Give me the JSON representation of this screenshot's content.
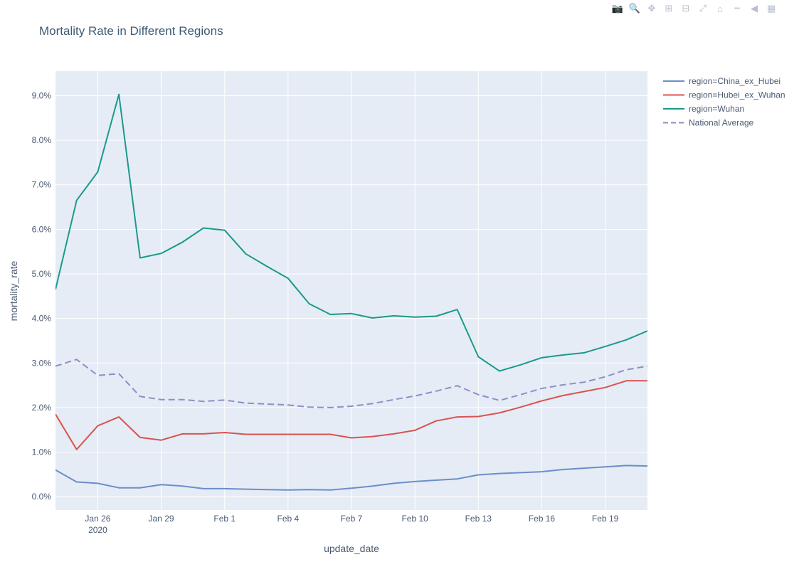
{
  "toolbar": {
    "icons": [
      "camera-icon",
      "zoom-icon",
      "pan-icon",
      "zoom-in-icon",
      "zoom-out-icon",
      "autoscale-icon",
      "home-icon",
      "spike-lines-icon",
      "hover-closest-icon",
      "hover-compare-icon"
    ]
  },
  "colors": {
    "plot_bg": "#e5ecf6",
    "grid": "#ffffff",
    "China_ex_Hubei": "#6b8ec9",
    "Hubei_ex_Wuhan": "#d9534f",
    "Wuhan": "#1a9a8a",
    "National Average": "#8f8fc4"
  },
  "chart_data": {
    "type": "line",
    "title": "Mortality Rate in Different Regions",
    "xlabel": "update_date",
    "ylabel": "mortality_rate",
    "x": [
      "2020-01-24",
      "2020-01-25",
      "2020-01-26",
      "2020-01-27",
      "2020-01-28",
      "2020-01-29",
      "2020-01-30",
      "2020-01-31",
      "2020-02-01",
      "2020-02-02",
      "2020-02-03",
      "2020-02-04",
      "2020-02-05",
      "2020-02-06",
      "2020-02-07",
      "2020-02-08",
      "2020-02-09",
      "2020-02-10",
      "2020-02-11",
      "2020-02-12",
      "2020-02-13",
      "2020-02-14",
      "2020-02-15",
      "2020-02-16",
      "2020-02-17",
      "2020-02-18",
      "2020-02-19",
      "2020-02-20",
      "2020-02-21"
    ],
    "xlim": [
      "2020-01-24",
      "2020-02-21"
    ],
    "x_ticks": [
      {
        "date": "2020-01-26",
        "label": "Jan 26",
        "sub": "2020"
      },
      {
        "date": "2020-01-29",
        "label": "Jan 29"
      },
      {
        "date": "2020-02-01",
        "label": "Feb 1"
      },
      {
        "date": "2020-02-04",
        "label": "Feb 4"
      },
      {
        "date": "2020-02-07",
        "label": "Feb 7"
      },
      {
        "date": "2020-02-10",
        "label": "Feb 10"
      },
      {
        "date": "2020-02-13",
        "label": "Feb 13"
      },
      {
        "date": "2020-02-16",
        "label": "Feb 16"
      },
      {
        "date": "2020-02-19",
        "label": "Feb 19"
      }
    ],
    "ylim": [
      -0.003,
      0.0955
    ],
    "y_ticks": [
      {
        "value": 0.0,
        "label": "0.0%"
      },
      {
        "value": 0.01,
        "label": "1.0%"
      },
      {
        "value": 0.02,
        "label": "2.0%"
      },
      {
        "value": 0.03,
        "label": "3.0%"
      },
      {
        "value": 0.04,
        "label": "4.0%"
      },
      {
        "value": 0.05,
        "label": "5.0%"
      },
      {
        "value": 0.06,
        "label": "6.0%"
      },
      {
        "value": 0.07,
        "label": "7.0%"
      },
      {
        "value": 0.08,
        "label": "8.0%"
      },
      {
        "value": 0.09,
        "label": "9.0%"
      }
    ],
    "grid": true,
    "legend_position": "right",
    "series": [
      {
        "name": "region=China_ex_Hubei",
        "key": "China_ex_Hubei",
        "dash": false,
        "values": [
          0.006,
          0.0033,
          0.003,
          0.002,
          0.002,
          0.0027,
          0.0024,
          0.0018,
          0.0018,
          0.0017,
          0.0016,
          0.0015,
          0.0016,
          0.0015,
          0.0019,
          0.0024,
          0.003,
          0.0034,
          0.0037,
          0.004,
          0.0049,
          0.0052,
          0.0054,
          0.0056,
          0.0061,
          0.0064,
          0.0067,
          0.007,
          0.0069
        ]
      },
      {
        "name": "region=Hubei_ex_Wuhan",
        "key": "Hubei_ex_Wuhan",
        "dash": false,
        "values": [
          0.0185,
          0.0106,
          0.0159,
          0.0179,
          0.0133,
          0.0127,
          0.0141,
          0.0141,
          0.0144,
          0.014,
          0.014,
          0.014,
          0.014,
          0.014,
          0.0132,
          0.0135,
          0.0141,
          0.0149,
          0.017,
          0.0179,
          0.018,
          0.0188,
          0.0201,
          0.0215,
          0.0227,
          0.0236,
          0.0245,
          0.026,
          0.026
        ]
      },
      {
        "name": "region=Wuhan",
        "key": "Wuhan",
        "dash": false,
        "values": [
          0.0465,
          0.0665,
          0.0729,
          0.0903,
          0.0536,
          0.0546,
          0.0571,
          0.0603,
          0.0598,
          0.0545,
          0.0517,
          0.049,
          0.0433,
          0.0409,
          0.0411,
          0.0401,
          0.0406,
          0.0403,
          0.0405,
          0.042,
          0.0314,
          0.0282,
          0.0296,
          0.0312,
          0.0318,
          0.0323,
          0.0337,
          0.0352,
          0.0372
        ]
      },
      {
        "name": "National Average",
        "key": "National Average",
        "dash": true,
        "values": [
          0.0293,
          0.0308,
          0.0272,
          0.0276,
          0.0225,
          0.0218,
          0.0218,
          0.0214,
          0.0217,
          0.021,
          0.0208,
          0.0206,
          0.0201,
          0.02,
          0.0203,
          0.0209,
          0.0218,
          0.0226,
          0.0237,
          0.0249,
          0.0229,
          0.0216,
          0.0229,
          0.0243,
          0.0251,
          0.0257,
          0.0269,
          0.0285,
          0.0293
        ]
      }
    ]
  }
}
